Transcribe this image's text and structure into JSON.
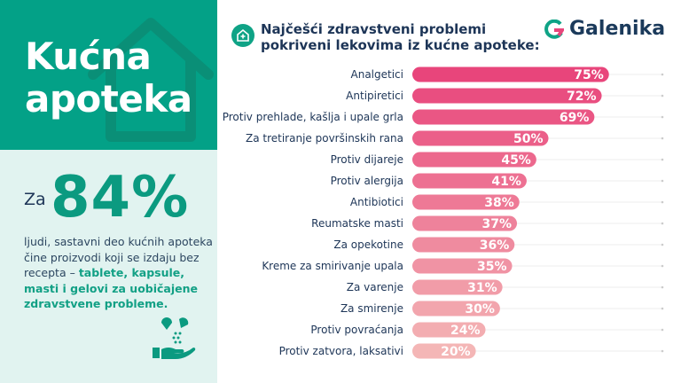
{
  "left_panel": {
    "title_line1": "Kućna",
    "title_line2": "apoteka",
    "stat_prefix": "Za",
    "stat_value": "84%",
    "desc_plain": "ljudi, sastavni deo kućnih apoteka čine proizvodi koji se izdaju bez recepta – ",
    "desc_bold": "tablete, kapsule, masti i gelovi za uobičajene zdravstvene probleme.",
    "colors": {
      "teal": "#03a187",
      "light": "#e1f3f0"
    }
  },
  "logo": {
    "text": "Galenika"
  },
  "chart_data": {
    "type": "bar",
    "orientation": "horizontal",
    "title": "Najčešći zdravstveni problemi pokriveni lekovima iz kućne apoteke:",
    "title_line1": "Najčešći zdravstveni problemi",
    "title_line2": "pokriveni lekovima iz kućne apoteke:",
    "categories": [
      "Analgetici",
      "Antipiretici",
      "Protiv prehlade, kašlja i upale grla",
      "Za tretiranje površinskih rana",
      "Protiv dijareje",
      "Protiv alergija",
      "Antibiotici",
      "Reumatske masti",
      "Za opekotine",
      "Kreme za smirivanje upala",
      "Za varenje",
      "Za smirenje",
      "Protiv povraćanja",
      "Protiv zatvora, laksativi"
    ],
    "values": [
      75,
      72,
      69,
      50,
      45,
      41,
      38,
      37,
      36,
      35,
      31,
      30,
      24,
      20
    ],
    "unit": "%",
    "colors": {
      "start": "#e8457b",
      "end": "#f4b6b6"
    },
    "grid": false
  }
}
